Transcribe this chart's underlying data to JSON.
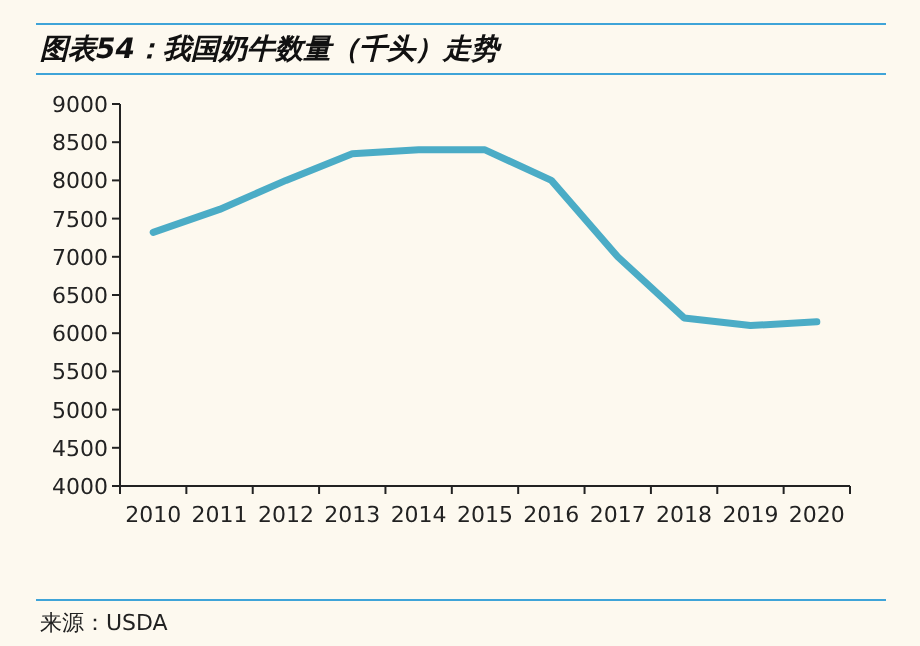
{
  "chart_data": {
    "type": "line",
    "title": "图表54：我国奶牛数量（千头）走势",
    "categories": [
      "2010",
      "2011",
      "2012",
      "2013",
      "2014",
      "2015",
      "2016",
      "2017",
      "2018",
      "2019",
      "2020"
    ],
    "values": [
      7320,
      7620,
      8000,
      8350,
      8400,
      8400,
      8000,
      7000,
      6200,
      6100,
      6150
    ],
    "color": "#4bacc6",
    "ylim": [
      4000,
      9000
    ],
    "yticks": [
      4000,
      4500,
      5000,
      5500,
      6000,
      6500,
      7000,
      7500,
      8000,
      8500,
      9000
    ],
    "annotations": [
      "来源：USDA"
    ]
  }
}
